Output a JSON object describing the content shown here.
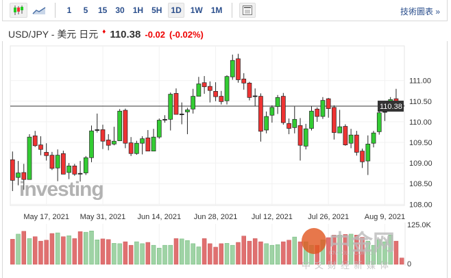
{
  "toolbar": {
    "chart_types": [
      {
        "icon": "candlestick-icon",
        "active": true
      },
      {
        "icon": "area-chart-icon",
        "active": false
      }
    ],
    "intervals": [
      "1",
      "5",
      "15",
      "30",
      "1H",
      "5H",
      "1D",
      "1W",
      "1M"
    ],
    "active_interval": "1D",
    "settings_icon": "layout-icon",
    "tech_link": "技術圖表 »"
  },
  "header": {
    "symbol": "USD/JPY - 美元 日元",
    "direction_icon": "down-arrow-icon",
    "price": "110.38",
    "change": "-0.02",
    "change_pct": "(-0.02%)"
  },
  "watermark": {
    "brand": "investing",
    ".com": ".com"
  },
  "logo": {
    "name": "中金网",
    "url": "CNGOLD.COM.CN",
    "sub": "中文财经新媒体"
  },
  "colors": {
    "up": "#33cc33",
    "down": "#ee3333",
    "vol_up": "#9fd3a5",
    "vol_down": "#e07070",
    "last_price_bg": "#333333"
  },
  "chart_data": {
    "type": "candlestick",
    "x_tick_labels": [
      "May 17, 2021",
      "May 31, 2021",
      "Jun 14, 2021",
      "Jun 28, 2021",
      "Jul 12, 2021",
      "Jul 26, 2021",
      "Aug 9, 2021"
    ],
    "y_tick_labels": [
      "111.00",
      "110.50",
      "110.00",
      "109.50",
      "109.00",
      "108.50",
      "108.00"
    ],
    "ylim": [
      108.0,
      111.75
    ],
    "last_price": "110.38",
    "volume_axis_labels": [
      "125.0K",
      "0"
    ],
    "volume_max": 125,
    "ohlc": [
      [
        109.08,
        109.28,
        108.32,
        108.58
      ],
      [
        108.65,
        109.05,
        108.46,
        108.76
      ],
      [
        108.77,
        108.98,
        108.35,
        108.6
      ],
      [
        108.6,
        109.7,
        108.6,
        109.63
      ],
      [
        109.66,
        109.78,
        109.39,
        109.42
      ],
      [
        109.44,
        109.65,
        109.19,
        109.33
      ],
      [
        109.26,
        109.48,
        109.06,
        109.18
      ],
      [
        109.19,
        109.27,
        108.83,
        108.87
      ],
      [
        108.88,
        109.33,
        108.56,
        109.19
      ],
      [
        109.23,
        109.3,
        108.73,
        108.73
      ],
      [
        108.77,
        109.0,
        108.61,
        108.93
      ],
      [
        108.93,
        108.98,
        108.69,
        108.73
      ],
      [
        108.75,
        109.05,
        108.55,
        108.74
      ],
      [
        108.76,
        109.17,
        108.71,
        109.13
      ],
      [
        109.13,
        109.91,
        109.02,
        109.78
      ],
      [
        109.8,
        110.2,
        109.74,
        109.81
      ],
      [
        109.81,
        109.93,
        109.34,
        109.53
      ],
      [
        109.56,
        109.7,
        109.31,
        109.43
      ],
      [
        109.46,
        109.88,
        109.43,
        109.53
      ],
      [
        109.54,
        110.31,
        109.54,
        110.26
      ],
      [
        110.28,
        110.32,
        109.36,
        109.48
      ],
      [
        109.49,
        109.63,
        109.17,
        109.23
      ],
      [
        109.23,
        109.54,
        109.2,
        109.48
      ],
      [
        109.48,
        109.65,
        109.21,
        109.59
      ],
      [
        109.61,
        109.8,
        109.29,
        109.29
      ],
      [
        109.29,
        109.83,
        109.29,
        109.63
      ],
      [
        109.63,
        110.08,
        109.59,
        110.04
      ],
      [
        110.05,
        110.16,
        109.98,
        110.06
      ],
      [
        110.06,
        110.71,
        109.79,
        110.67
      ],
      [
        110.69,
        110.81,
        110.18,
        110.18
      ],
      [
        110.18,
        110.47,
        109.94,
        110.19
      ],
      [
        110.24,
        110.34,
        109.7,
        110.29
      ],
      [
        110.31,
        110.8,
        110.2,
        110.62
      ],
      [
        110.62,
        111.09,
        110.62,
        110.92
      ],
      [
        110.95,
        111.11,
        110.68,
        110.85
      ],
      [
        110.86,
        110.98,
        110.47,
        110.76
      ],
      [
        110.74,
        110.96,
        110.5,
        110.61
      ],
      [
        110.62,
        110.75,
        110.42,
        110.49
      ],
      [
        110.51,
        111.13,
        110.42,
        111.1
      ],
      [
        111.09,
        111.63,
        111.02,
        111.49
      ],
      [
        111.53,
        111.65,
        110.95,
        111.02
      ],
      [
        111.04,
        111.18,
        110.78,
        110.94
      ],
      [
        110.94,
        110.97,
        110.52,
        110.59
      ],
      [
        110.63,
        110.81,
        110.38,
        110.62
      ],
      [
        110.62,
        110.69,
        109.52,
        109.77
      ],
      [
        109.8,
        110.25,
        109.72,
        110.13
      ],
      [
        110.16,
        110.4,
        109.98,
        110.35
      ],
      [
        110.37,
        110.65,
        110.19,
        110.59
      ],
      [
        110.62,
        110.7,
        109.93,
        109.98
      ],
      [
        109.96,
        110.08,
        109.7,
        109.84
      ],
      [
        109.86,
        110.37,
        109.72,
        110.06
      ],
      [
        109.91,
        110.09,
        109.06,
        109.43
      ],
      [
        109.41,
        109.95,
        109.33,
        109.83
      ],
      [
        109.84,
        110.38,
        109.79,
        110.26
      ],
      [
        110.31,
        110.35,
        110.0,
        110.13
      ],
      [
        110.13,
        110.6,
        110.07,
        110.52
      ],
      [
        110.56,
        110.58,
        110.1,
        110.32
      ],
      [
        110.35,
        110.4,
        109.57,
        109.74
      ],
      [
        109.73,
        110.29,
        109.73,
        109.88
      ],
      [
        109.89,
        109.94,
        109.42,
        109.44
      ],
      [
        109.48,
        109.83,
        109.36,
        109.68
      ],
      [
        109.68,
        109.78,
        109.18,
        109.26
      ],
      [
        109.29,
        109.35,
        108.88,
        109.03
      ],
      [
        109.05,
        109.67,
        108.71,
        109.46
      ],
      [
        109.48,
        109.78,
        109.38,
        109.73
      ],
      [
        109.76,
        110.37,
        109.69,
        110.22
      ],
      [
        110.24,
        110.37,
        110.02,
        110.25
      ],
      [
        110.27,
        110.6,
        110.27,
        110.54
      ],
      [
        110.56,
        110.8,
        110.3,
        110.39
      ],
      [
        110.4,
        110.41,
        110.31,
        110.38
      ]
    ],
    "volume_k": [
      79,
      95,
      104,
      81,
      87,
      73,
      76,
      97,
      99,
      87,
      90,
      81,
      103,
      101,
      105,
      77,
      80,
      78,
      66,
      65,
      71,
      60,
      71,
      65,
      69,
      60,
      51,
      60,
      60,
      81,
      80,
      75,
      65,
      55,
      81,
      65,
      54,
      65,
      66,
      60,
      69,
      89,
      73,
      81,
      71,
      65,
      60,
      62,
      71,
      76,
      86,
      71,
      71,
      60,
      60,
      77,
      84,
      92,
      92,
      94,
      95,
      92,
      85,
      73,
      60,
      78,
      71,
      92,
      73,
      20
    ]
  }
}
